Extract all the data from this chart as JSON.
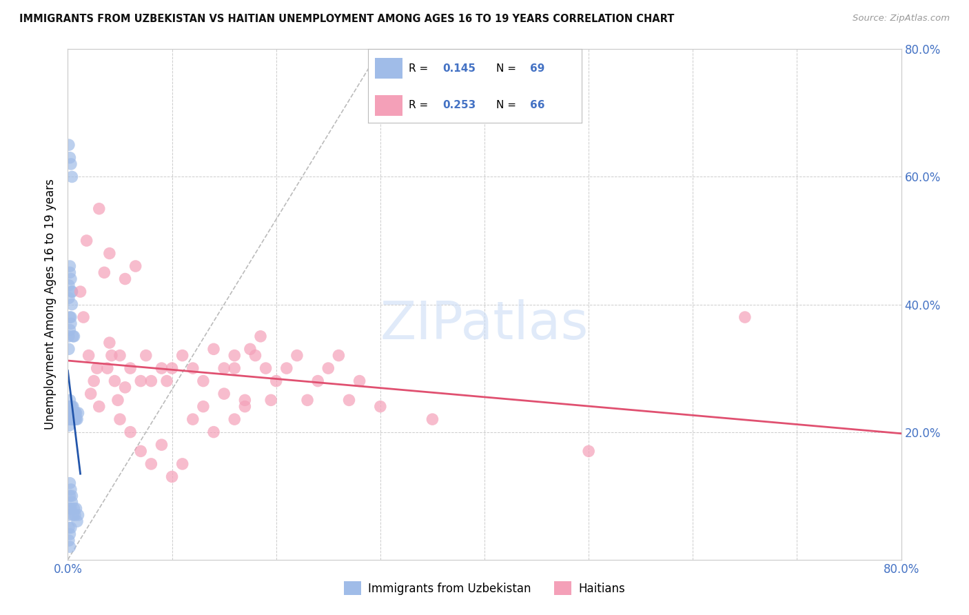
{
  "title": "IMMIGRANTS FROM UZBEKISTAN VS HAITIAN UNEMPLOYMENT AMONG AGES 16 TO 19 YEARS CORRELATION CHART",
  "source": "Source: ZipAtlas.com",
  "ylabel": "Unemployment Among Ages 16 to 19 years",
  "xlim": [
    0.0,
    0.8
  ],
  "ylim": [
    0.0,
    0.8
  ],
  "legend_labels": [
    "Immigrants from Uzbekistan",
    "Haitians"
  ],
  "legend_R1": "0.145",
  "legend_N1": "69",
  "legend_R2": "0.253",
  "legend_N2": "66",
  "blue_scatter_color": "#a0bce8",
  "pink_scatter_color": "#f4a0b8",
  "blue_line_color": "#2255aa",
  "pink_line_color": "#e05070",
  "gray_dash_color": "#aaaaaa",
  "grid_color": "#cccccc",
  "title_color": "#111111",
  "source_color": "#999999",
  "watermark_color": "#ccddf5",
  "tick_color": "#4472c4",
  "seed": 99,
  "blue_x": [
    0.001,
    0.001,
    0.001,
    0.001,
    0.002,
    0.002,
    0.002,
    0.002,
    0.002,
    0.003,
    0.003,
    0.003,
    0.003,
    0.003,
    0.004,
    0.004,
    0.004,
    0.004,
    0.005,
    0.005,
    0.005,
    0.006,
    0.006,
    0.006,
    0.007,
    0.007,
    0.008,
    0.008,
    0.009,
    0.01,
    0.001,
    0.001,
    0.002,
    0.002,
    0.003,
    0.003,
    0.004,
    0.004,
    0.005,
    0.006,
    0.001,
    0.001,
    0.002,
    0.002,
    0.003,
    0.004,
    0.002,
    0.002,
    0.003,
    0.004,
    0.001,
    0.002,
    0.003,
    0.004,
    0.005,
    0.006,
    0.007,
    0.008,
    0.009,
    0.01,
    0.001,
    0.002,
    0.003,
    0.001,
    0.002,
    0.003,
    0.004,
    0.001,
    0.002
  ],
  "blue_y": [
    0.22,
    0.23,
    0.24,
    0.21,
    0.22,
    0.24,
    0.25,
    0.23,
    0.22,
    0.23,
    0.24,
    0.22,
    0.23,
    0.22,
    0.23,
    0.22,
    0.24,
    0.22,
    0.23,
    0.22,
    0.24,
    0.22,
    0.23,
    0.22,
    0.23,
    0.22,
    0.23,
    0.22,
    0.22,
    0.23,
    0.33,
    0.35,
    0.36,
    0.38,
    0.37,
    0.38,
    0.4,
    0.42,
    0.35,
    0.35,
    0.43,
    0.41,
    0.45,
    0.46,
    0.44,
    0.42,
    0.1,
    0.12,
    0.11,
    0.1,
    0.07,
    0.08,
    0.08,
    0.09,
    0.07,
    0.08,
    0.07,
    0.08,
    0.06,
    0.07,
    0.05,
    0.04,
    0.05,
    0.65,
    0.63,
    0.62,
    0.6,
    0.03,
    0.02
  ],
  "pink_x": [
    0.012,
    0.018,
    0.022,
    0.028,
    0.035,
    0.04,
    0.045,
    0.05,
    0.015,
    0.02,
    0.025,
    0.03,
    0.038,
    0.042,
    0.048,
    0.055,
    0.06,
    0.07,
    0.075,
    0.08,
    0.09,
    0.095,
    0.1,
    0.11,
    0.12,
    0.13,
    0.14,
    0.15,
    0.16,
    0.17,
    0.18,
    0.19,
    0.2,
    0.21,
    0.22,
    0.23,
    0.24,
    0.25,
    0.26,
    0.27,
    0.28,
    0.16,
    0.17,
    0.175,
    0.185,
    0.195,
    0.05,
    0.06,
    0.07,
    0.08,
    0.09,
    0.1,
    0.11,
    0.3,
    0.35,
    0.5,
    0.65,
    0.12,
    0.13,
    0.14,
    0.03,
    0.04,
    0.055,
    0.065,
    0.15,
    0.16
  ],
  "pink_y": [
    0.42,
    0.5,
    0.26,
    0.3,
    0.45,
    0.34,
    0.28,
    0.32,
    0.38,
    0.32,
    0.28,
    0.24,
    0.3,
    0.32,
    0.25,
    0.27,
    0.3,
    0.28,
    0.32,
    0.28,
    0.3,
    0.28,
    0.3,
    0.32,
    0.3,
    0.28,
    0.33,
    0.26,
    0.3,
    0.25,
    0.32,
    0.3,
    0.28,
    0.3,
    0.32,
    0.25,
    0.28,
    0.3,
    0.32,
    0.25,
    0.28,
    0.22,
    0.24,
    0.33,
    0.35,
    0.25,
    0.22,
    0.2,
    0.17,
    0.15,
    0.18,
    0.13,
    0.15,
    0.24,
    0.22,
    0.17,
    0.38,
    0.22,
    0.24,
    0.2,
    0.55,
    0.48,
    0.44,
    0.46,
    0.3,
    0.32
  ]
}
